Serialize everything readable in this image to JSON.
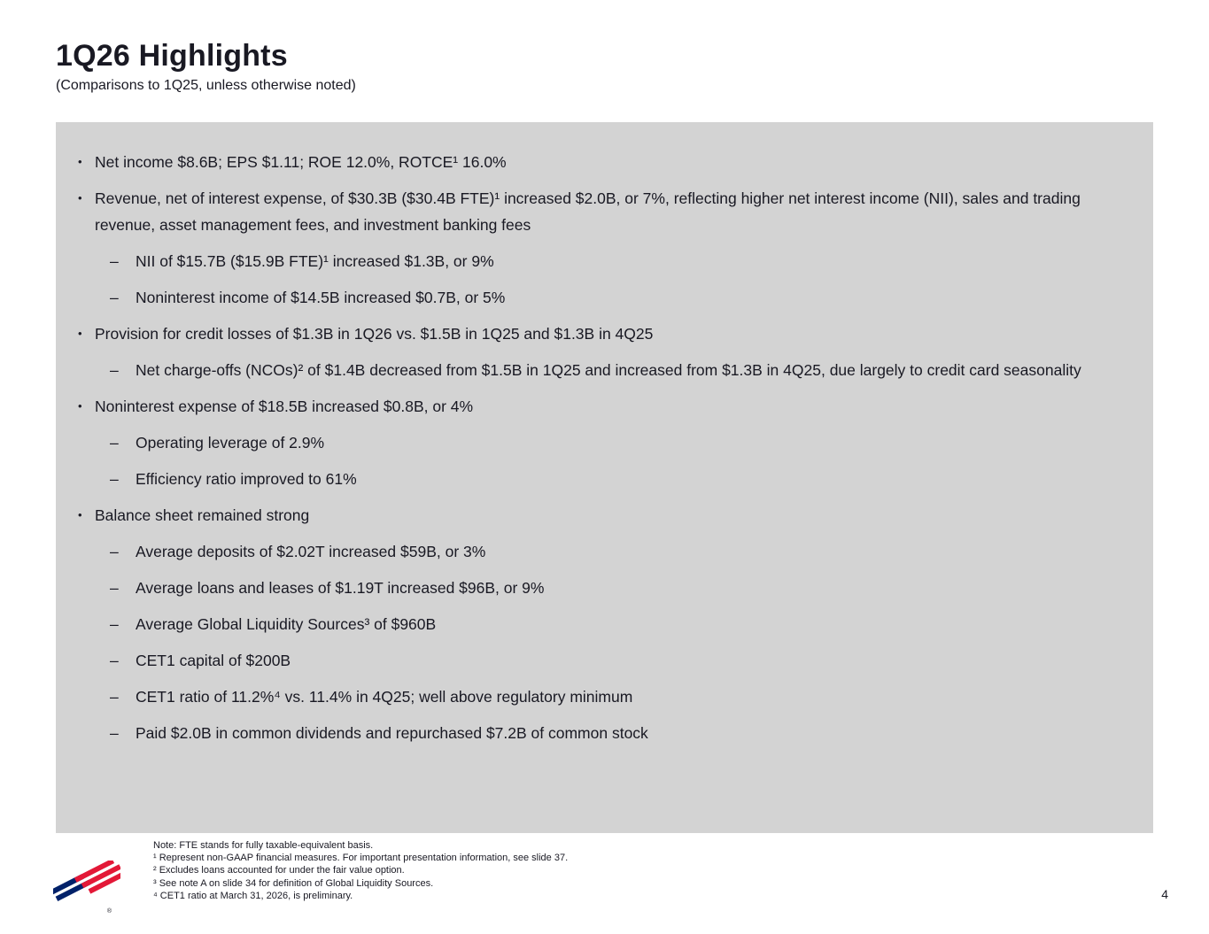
{
  "slide": {
    "title": "1Q26 Highlights",
    "subtitle": "(Comparisons to 1Q25, unless otherwise noted)",
    "page_number": "4"
  },
  "content": {
    "markers": {
      "level1": "•",
      "level2": "–"
    },
    "bullets": [
      {
        "level": 1,
        "text": "Net income $8.6B; EPS $1.11; ROE 12.0%, ROTCE¹ 16.0%"
      },
      {
        "level": 1,
        "text": "Revenue, net of interest expense, of $30.3B ($30.4B FTE)¹ increased $2.0B, or 7%, reflecting higher net interest income (NII), sales and trading revenue, asset management fees, and investment banking fees"
      },
      {
        "level": 2,
        "text": "NII of $15.7B ($15.9B FTE)¹ increased $1.3B, or 9%"
      },
      {
        "level": 2,
        "text": "Noninterest income of $14.5B increased $0.7B, or 5%"
      },
      {
        "level": 1,
        "text": "Provision for credit losses of $1.3B in 1Q26 vs. $1.5B in 1Q25 and $1.3B in 4Q25"
      },
      {
        "level": 2,
        "text": "Net charge-offs (NCOs)² of $1.4B decreased from $1.5B in 1Q25 and increased from $1.3B in 4Q25, due largely to credit card seasonality"
      },
      {
        "level": 1,
        "text": "Noninterest expense of $18.5B increased $0.8B, or 4%"
      },
      {
        "level": 2,
        "text": "Operating leverage of 2.9%"
      },
      {
        "level": 2,
        "text": "Efficiency ratio improved to 61%"
      },
      {
        "level": 1,
        "text": "Balance sheet remained strong"
      },
      {
        "level": 2,
        "text": "Average deposits of $2.02T increased $59B, or 3%"
      },
      {
        "level": 2,
        "text": "Average loans and leases of $1.19T increased $96B, or 9%"
      },
      {
        "level": 2,
        "text": "Average Global Liquidity Sources³ of $960B"
      },
      {
        "level": 2,
        "text": "CET1 capital of $200B"
      },
      {
        "level": 2,
        "text": "CET1 ratio of 11.2%⁴ vs. 11.4% in 4Q25; well above regulatory minimum"
      },
      {
        "level": 2,
        "text": "Paid $2.0B in common dividends and repurchased $7.2B of common stock"
      }
    ]
  },
  "footnotes": {
    "lines": [
      "Note: FTE stands for fully taxable-equivalent basis.",
      "¹ Represent non-GAAP financial measures. For important presentation information, see slide 37.",
      "² Excludes loans accounted for under the fair value option.",
      "³ See note A on slide 34 for definition of Global Liquidity Sources.",
      "⁴ CET1 ratio at March 31, 2026, is preliminary."
    ]
  },
  "logo": {
    "label": "Bank of America flag logo",
    "registered_mark": "®"
  },
  "colors": {
    "page_bg": "#ffffff",
    "box_bg": "#d3d3d3",
    "text": "#191923",
    "logo_blue": "#012169",
    "logo_red": "#e31837"
  }
}
